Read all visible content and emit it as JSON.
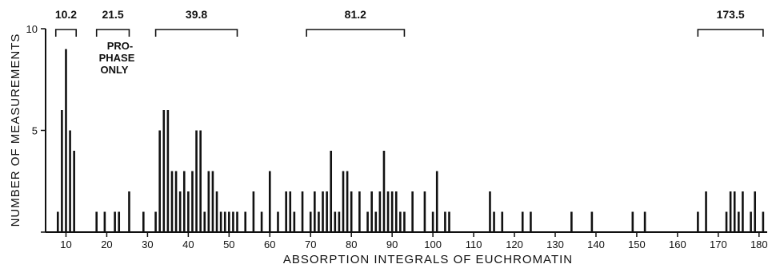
{
  "chart_data": {
    "type": "bar",
    "xlabel": "ABSORPTION INTEGRALS OF EUCHROMATIN",
    "ylabel": "NUMBER OF MEASUREMENTS",
    "xlim": [
      5,
      182
    ],
    "ylim": [
      0,
      10
    ],
    "xticks": [
      10,
      20,
      30,
      40,
      50,
      60,
      70,
      80,
      90,
      100,
      110,
      120,
      130,
      140,
      150,
      160,
      170,
      180
    ],
    "yticks": [
      0,
      5,
      10
    ],
    "grid": false,
    "bars": [
      {
        "x": 8,
        "y": 1
      },
      {
        "x": 9,
        "y": 6
      },
      {
        "x": 10,
        "y": 9
      },
      {
        "x": 11,
        "y": 5
      },
      {
        "x": 12,
        "y": 4
      },
      {
        "x": 17.5,
        "y": 1
      },
      {
        "x": 19.5,
        "y": 1
      },
      {
        "x": 22,
        "y": 1
      },
      {
        "x": 23,
        "y": 1
      },
      {
        "x": 25.5,
        "y": 2
      },
      {
        "x": 29,
        "y": 1
      },
      {
        "x": 32,
        "y": 1
      },
      {
        "x": 33,
        "y": 5
      },
      {
        "x": 34,
        "y": 6
      },
      {
        "x": 35,
        "y": 6
      },
      {
        "x": 36,
        "y": 3
      },
      {
        "x": 37,
        "y": 3
      },
      {
        "x": 38,
        "y": 2
      },
      {
        "x": 39,
        "y": 3
      },
      {
        "x": 40,
        "y": 2
      },
      {
        "x": 41,
        "y": 3
      },
      {
        "x": 42,
        "y": 5
      },
      {
        "x": 43,
        "y": 5
      },
      {
        "x": 44,
        "y": 1
      },
      {
        "x": 45,
        "y": 3
      },
      {
        "x": 46,
        "y": 3
      },
      {
        "x": 47,
        "y": 2
      },
      {
        "x": 48,
        "y": 1
      },
      {
        "x": 49,
        "y": 1
      },
      {
        "x": 50,
        "y": 1
      },
      {
        "x": 51,
        "y": 1
      },
      {
        "x": 52,
        "y": 1
      },
      {
        "x": 54,
        "y": 1
      },
      {
        "x": 56,
        "y": 2
      },
      {
        "x": 58,
        "y": 1
      },
      {
        "x": 60,
        "y": 3
      },
      {
        "x": 62,
        "y": 1
      },
      {
        "x": 64,
        "y": 2
      },
      {
        "x": 65,
        "y": 2
      },
      {
        "x": 66,
        "y": 1
      },
      {
        "x": 68,
        "y": 2
      },
      {
        "x": 70,
        "y": 1
      },
      {
        "x": 71,
        "y": 2
      },
      {
        "x": 72,
        "y": 1
      },
      {
        "x": 73,
        "y": 2
      },
      {
        "x": 74,
        "y": 2
      },
      {
        "x": 75,
        "y": 4
      },
      {
        "x": 76,
        "y": 1
      },
      {
        "x": 77,
        "y": 1
      },
      {
        "x": 78,
        "y": 3
      },
      {
        "x": 79,
        "y": 3
      },
      {
        "x": 80,
        "y": 2
      },
      {
        "x": 82,
        "y": 2
      },
      {
        "x": 84,
        "y": 1
      },
      {
        "x": 85,
        "y": 2
      },
      {
        "x": 86,
        "y": 1
      },
      {
        "x": 87,
        "y": 2
      },
      {
        "x": 88,
        "y": 4
      },
      {
        "x": 89,
        "y": 2
      },
      {
        "x": 90,
        "y": 2
      },
      {
        "x": 91,
        "y": 2
      },
      {
        "x": 92,
        "y": 1
      },
      {
        "x": 93,
        "y": 1
      },
      {
        "x": 95,
        "y": 2
      },
      {
        "x": 98,
        "y": 2
      },
      {
        "x": 100,
        "y": 1
      },
      {
        "x": 101,
        "y": 3
      },
      {
        "x": 103,
        "y": 1
      },
      {
        "x": 104,
        "y": 1
      },
      {
        "x": 114,
        "y": 2
      },
      {
        "x": 115,
        "y": 1
      },
      {
        "x": 117,
        "y": 1
      },
      {
        "x": 122,
        "y": 1
      },
      {
        "x": 124,
        "y": 1
      },
      {
        "x": 134,
        "y": 1
      },
      {
        "x": 139,
        "y": 1
      },
      {
        "x": 149,
        "y": 1
      },
      {
        "x": 152,
        "y": 1
      },
      {
        "x": 165,
        "y": 1
      },
      {
        "x": 167,
        "y": 2
      },
      {
        "x": 172,
        "y": 1
      },
      {
        "x": 173,
        "y": 2
      },
      {
        "x": 174,
        "y": 2
      },
      {
        "x": 175,
        "y": 1
      },
      {
        "x": 176,
        "y": 2
      },
      {
        "x": 178,
        "y": 1
      },
      {
        "x": 179,
        "y": 2
      },
      {
        "x": 181,
        "y": 1
      }
    ],
    "brackets": [
      {
        "label": "10.2",
        "from": 7.5,
        "to": 12.5
      },
      {
        "label": "21.5",
        "from": 17.5,
        "to": 25.5
      },
      {
        "label": "39.8",
        "from": 32,
        "to": 52
      },
      {
        "label": "81.2",
        "from": 69,
        "to": 93
      },
      {
        "label": "173.5",
        "from": 165,
        "to": 181
      }
    ],
    "annotations": [
      "PRO-",
      "PHASE",
      "ONLY"
    ]
  }
}
